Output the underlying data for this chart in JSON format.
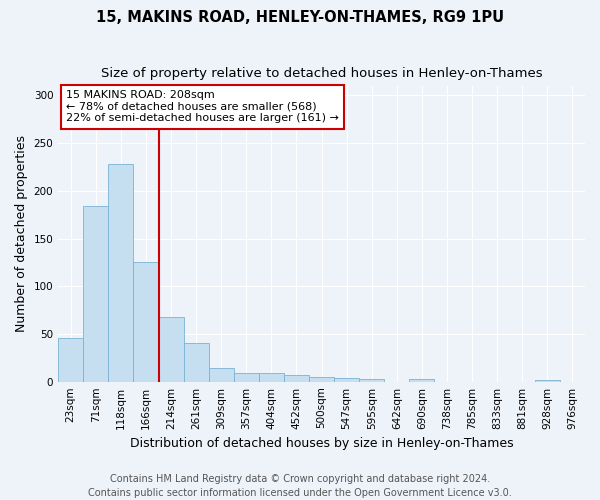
{
  "title": "15, MAKINS ROAD, HENLEY-ON-THAMES, RG9 1PU",
  "subtitle": "Size of property relative to detached houses in Henley-on-Thames",
  "xlabel": "Distribution of detached houses by size in Henley-on-Thames",
  "ylabel": "Number of detached properties",
  "categories": [
    "23sqm",
    "71sqm",
    "118sqm",
    "166sqm",
    "214sqm",
    "261sqm",
    "309sqm",
    "357sqm",
    "404sqm",
    "452sqm",
    "500sqm",
    "547sqm",
    "595sqm",
    "642sqm",
    "690sqm",
    "738sqm",
    "785sqm",
    "833sqm",
    "881sqm",
    "928sqm",
    "976sqm"
  ],
  "values": [
    46,
    184,
    228,
    125,
    68,
    41,
    14,
    9,
    9,
    7,
    5,
    4,
    3,
    0,
    3,
    0,
    0,
    0,
    0,
    2,
    0
  ],
  "bar_color": "#c5dff0",
  "bar_edge_color": "#7ab3d4",
  "marker_label": "15 MAKINS ROAD: 208sqm",
  "annotation_line1": "← 78% of detached houses are smaller (568)",
  "annotation_line2": "22% of semi-detached houses are larger (161) →",
  "annotation_box_color": "#ffffff",
  "annotation_box_edge": "#cc0000",
  "vline_color": "#cc0000",
  "vline_x": 3.5,
  "ylim": [
    0,
    310
  ],
  "yticks": [
    0,
    50,
    100,
    150,
    200,
    250,
    300
  ],
  "footer_line1": "Contains HM Land Registry data © Crown copyright and database right 2024.",
  "footer_line2": "Contains public sector information licensed under the Open Government Licence v3.0.",
  "background_color": "#eef2f9",
  "grid_color": "#ffffff",
  "title_fontsize": 10.5,
  "subtitle_fontsize": 9.5,
  "ylabel_fontsize": 9,
  "xlabel_fontsize": 9,
  "tick_fontsize": 7.5,
  "annotation_fontsize": 8,
  "footer_fontsize": 7
}
